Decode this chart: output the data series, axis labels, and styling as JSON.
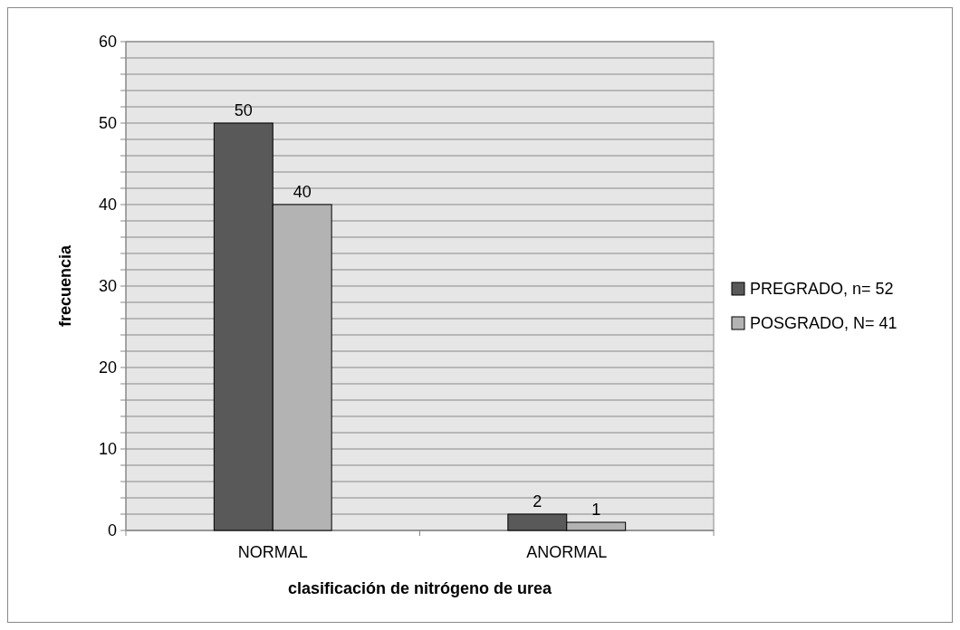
{
  "chart_data": {
    "type": "bar",
    "xlabel": "clasificación de nitrógeno de urea",
    "ylabel": "frecuencia",
    "categories": [
      "NORMAL",
      "ANORMAL"
    ],
    "series": [
      {
        "name": "PREGRADO, n= 52",
        "color": "#595959",
        "values": [
          50,
          2
        ]
      },
      {
        "name": "POSGRADO, N= 41",
        "color": "#b3b3b3",
        "values": [
          40,
          1
        ]
      }
    ],
    "ylim": [
      0,
      60
    ],
    "yticks": [
      0,
      {
        "value": 2,
        "label": null
      },
      {
        "value": 4,
        "label": null
      },
      {
        "value": 6,
        "label": null
      },
      {
        "value": 8,
        "label": null
      },
      10,
      {
        "value": 12,
        "label": null
      },
      {
        "value": 14,
        "label": null
      },
      {
        "value": 16,
        "label": null
      },
      {
        "value": 18,
        "label": null
      },
      20,
      {
        "value": 22,
        "label": null
      },
      {
        "value": 24,
        "label": null
      },
      {
        "value": 26,
        "label": null
      },
      {
        "value": 28,
        "label": null
      },
      30,
      {
        "value": 32,
        "label": null
      },
      {
        "value": 34,
        "label": null
      },
      {
        "value": 36,
        "label": null
      },
      {
        "value": 38,
        "label": null
      },
      40,
      {
        "value": 42,
        "label": null
      },
      {
        "value": 44,
        "label": null
      },
      {
        "value": 46,
        "label": null
      },
      {
        "value": 48,
        "label": null
      },
      50,
      {
        "value": 52,
        "label": null
      },
      {
        "value": 54,
        "label": null
      },
      {
        "value": 56,
        "label": null
      },
      {
        "value": 58,
        "label": null
      },
      60
    ],
    "grid": "y",
    "legend": "right",
    "data_labels": true
  }
}
